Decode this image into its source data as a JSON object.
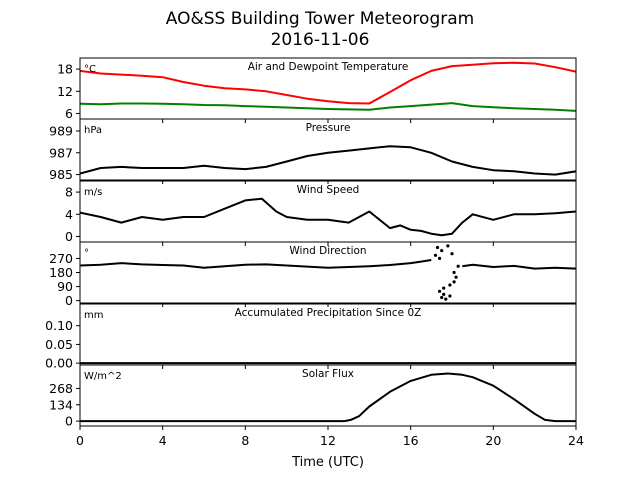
{
  "title_line1": "AO&SS Building Tower Meteorogram",
  "title_line2": "2016-11-06",
  "chart_data": {
    "type": "line",
    "xlabel": "Time (UTC)",
    "xlim": [
      0,
      24
    ],
    "xticks": [
      "0",
      "4",
      "8",
      "12",
      "16",
      "20",
      "24"
    ],
    "xtick_values": [
      0,
      4,
      8,
      12,
      16,
      20,
      24
    ],
    "panels": [
      {
        "name": "temperature",
        "title": "Air and Dewpoint Temperature",
        "unit": "°C",
        "ylim": [
          4.5,
          21
        ],
        "yticks": [
          6,
          12,
          18
        ],
        "ytick_labels": [
          "6",
          "12",
          "18"
        ],
        "series": [
          {
            "color": "#ff0000",
            "x": [
              0,
              1,
              2,
              3,
              4,
              5,
              6,
              7,
              8,
              9,
              10,
              11,
              12,
              13,
              14,
              15,
              16,
              17,
              18,
              19,
              20,
              21,
              22,
              23,
              24
            ],
            "y": [
              17.5,
              16.8,
              16.5,
              16.2,
              15.8,
              14.5,
              13.5,
              12.8,
              12.5,
              12,
              11,
              10,
              9.3,
              8.8,
              8.7,
              11.8,
              15,
              17.5,
              18.8,
              19.2,
              19.6,
              19.7,
              19.5,
              18.5,
              17.3
            ]
          },
          {
            "color": "#008000",
            "x": [
              0,
              1,
              2,
              3,
              4,
              5,
              6,
              7,
              8,
              9,
              10,
              11,
              12,
              13,
              14,
              15,
              16,
              17,
              18,
              19,
              20,
              21,
              22,
              23,
              24
            ],
            "y": [
              8.6,
              8.5,
              8.7,
              8.7,
              8.6,
              8.5,
              8.3,
              8.2,
              8,
              7.8,
              7.6,
              7.4,
              7.2,
              7.1,
              7,
              7.6,
              8,
              8.4,
              8.8,
              8,
              7.7,
              7.4,
              7.2,
              7,
              6.7
            ]
          }
        ]
      },
      {
        "name": "pressure",
        "title": "Pressure",
        "unit": "hPa",
        "ylim": [
          984.5,
          990.1
        ],
        "yticks": [
          985,
          987,
          989
        ],
        "ytick_labels": [
          "985",
          "987",
          "989"
        ],
        "series": [
          {
            "color": "#000000",
            "x": [
              0,
              1,
              2,
              3,
              4,
              5,
              6,
              7,
              8,
              9,
              10,
              11,
              12,
              13,
              14,
              15,
              16,
              17,
              18,
              19,
              20,
              21,
              22,
              23,
              24
            ],
            "y": [
              985.1,
              985.6,
              985.7,
              985.6,
              985.6,
              985.6,
              985.8,
              985.6,
              985.5,
              985.7,
              986.2,
              986.7,
              987.0,
              987.2,
              987.4,
              987.6,
              987.5,
              987.0,
              986.2,
              985.7,
              985.4,
              985.3,
              985.1,
              985.0,
              985.3
            ]
          }
        ]
      },
      {
        "name": "wind-speed",
        "title": "Wind Speed",
        "unit": "m/s",
        "ylim": [
          -1,
          10
        ],
        "yticks": [
          0,
          4,
          8
        ],
        "ytick_labels": [
          "0",
          "4",
          "8"
        ],
        "series": [
          {
            "color": "#000000",
            "x": [
              0,
              1,
              2,
              3,
              4,
              5,
              6,
              7,
              8,
              8.8,
              9.5,
              10,
              11,
              12,
              13,
              14,
              15,
              15.5,
              16,
              16.5,
              17,
              17.5,
              18,
              18.5,
              19,
              20,
              21,
              22,
              23,
              24
            ],
            "y": [
              4.3,
              3.5,
              2.5,
              3.5,
              3.0,
              3.5,
              3.5,
              5.0,
              6.5,
              6.8,
              4.5,
              3.5,
              3.0,
              3.0,
              2.5,
              4.5,
              1.5,
              2.0,
              1.2,
              1.0,
              0.5,
              0.2,
              0.5,
              2.5,
              4.0,
              3.0,
              4.0,
              4.0,
              4.2,
              4.5
            ]
          }
        ]
      },
      {
        "name": "wind-direction",
        "title": "Wind Direction",
        "unit": "°",
        "ylim": [
          -15,
          375
        ],
        "yticks": [
          0,
          90,
          180,
          270
        ],
        "ytick_labels": [
          "0",
          "90",
          "180",
          "270"
        ],
        "series": [
          {
            "color": "#000000",
            "x": [
              0,
              1,
              2,
              3,
              4,
              5,
              6,
              7,
              8,
              9,
              10,
              11,
              12,
              13,
              14,
              15,
              16,
              16.5,
              17
            ],
            "y": [
              225,
              230,
              240,
              232,
              228,
              225,
              210,
              220,
              230,
              232,
              225,
              218,
              210,
              215,
              220,
              228,
              240,
              250,
              260
            ]
          },
          {
            "color": "#000000",
            "x": [
              18.5,
              19,
              20,
              21,
              22,
              23,
              24
            ],
            "y": [
              220,
              230,
              215,
              222,
              205,
              210,
              205
            ]
          }
        ],
        "scatter": {
          "color": "#000000",
          "x": [
            17.2,
            17.3,
            17.4,
            17.5,
            17.5,
            17.6,
            17.7,
            17.8,
            17.9,
            18.0,
            18.1,
            18.2,
            18.3,
            17.4,
            17.6,
            17.9,
            18.1
          ],
          "y": [
            290,
            340,
            60,
            20,
            320,
            40,
            10,
            350,
            100,
            300,
            180,
            150,
            220,
            270,
            80,
            30,
            120
          ]
        }
      },
      {
        "name": "precipitation",
        "title": "Accumulated Precipitation Since 0Z",
        "unit": "mm",
        "ylim": [
          -0.005,
          0.158
        ],
        "yticks": [
          0,
          0.05,
          0.1
        ],
        "ytick_labels": [
          "0.00",
          "0.05",
          "0.10"
        ],
        "series": [
          {
            "color": "#000000",
            "x": [
              0,
              24
            ],
            "y": [
              0,
              0
            ]
          }
        ]
      },
      {
        "name": "solar-flux",
        "title": "Solar Flux",
        "unit": "W/m^2",
        "ylim": [
          -40,
          460
        ],
        "yticks": [
          0,
          134,
          268
        ],
        "ytick_labels": [
          "0",
          "134",
          "268"
        ],
        "series": [
          {
            "color": "#000000",
            "x": [
              0,
              12.8,
              13.1,
              13.5,
              14,
              15,
              16,
              17,
              17.8,
              18.5,
              19,
              20,
              21,
              22,
              22.5,
              23,
              24
            ],
            "y": [
              0,
              0,
              10,
              40,
              120,
              240,
              330,
              380,
              390,
              380,
              360,
              290,
              180,
              60,
              10,
              0,
              0
            ]
          }
        ]
      }
    ]
  }
}
